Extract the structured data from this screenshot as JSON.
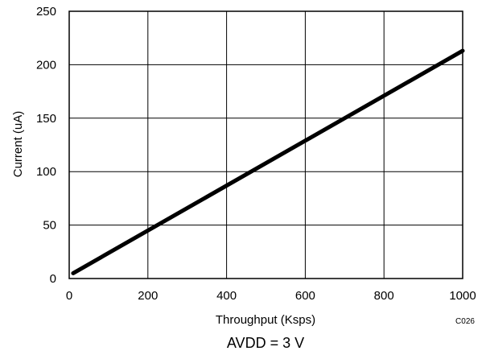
{
  "chart_data": {
    "type": "line",
    "title": "",
    "xlabel": "Throughput (Ksps)",
    "ylabel": "Current (uA)",
    "xlim": [
      0,
      1000
    ],
    "ylim": [
      0,
      250
    ],
    "x_ticks": [
      0,
      200,
      400,
      600,
      800,
      1000
    ],
    "y_ticks": [
      0,
      50,
      100,
      150,
      200,
      250
    ],
    "grid": true,
    "legend": "none",
    "series": [
      {
        "x": [
          10,
          1000
        ],
        "y": [
          5,
          213
        ]
      }
    ]
  },
  "figure_code": "C026",
  "caption": "AVDD = 3 V"
}
